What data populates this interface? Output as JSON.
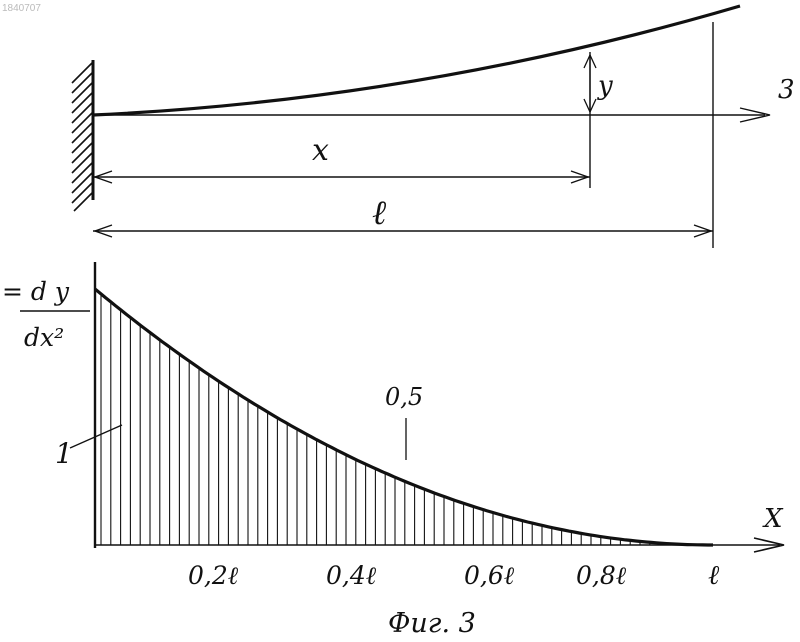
{
  "doc_id": "1840707",
  "beam": {
    "axis_label": "3",
    "deflection_label": "y",
    "position_label": "x",
    "length_label": "ℓ"
  },
  "graph": {
    "y_label_top": "= d y",
    "y_label_bottom": "dx²",
    "x_axis_label": "X",
    "curve_label": "1",
    "point_label": "0,5",
    "ticks": [
      "0,2ℓ",
      "0,4ℓ",
      "0,6ℓ",
      "0,8ℓ",
      "ℓ"
    ]
  },
  "caption": "Фиг. 3",
  "chart_data": {
    "type": "area",
    "x": [
      0,
      0.1,
      0.2,
      0.3,
      0.4,
      0.5,
      0.6,
      0.7,
      0.8,
      0.9,
      1.0
    ],
    "values": [
      1.0,
      0.81,
      0.64,
      0.49,
      0.36,
      0.25,
      0.16,
      0.09,
      0.04,
      0.01,
      0.0
    ],
    "xlabel": "X",
    "ylabel": "= d y / dx²",
    "tick_labels": [
      "0,2ℓ",
      "0,4ℓ",
      "0,6ℓ",
      "0,8ℓ",
      "ℓ"
    ],
    "annotations": [
      "1",
      "0,5"
    ],
    "fill": "vertical hatching",
    "grid": false
  }
}
